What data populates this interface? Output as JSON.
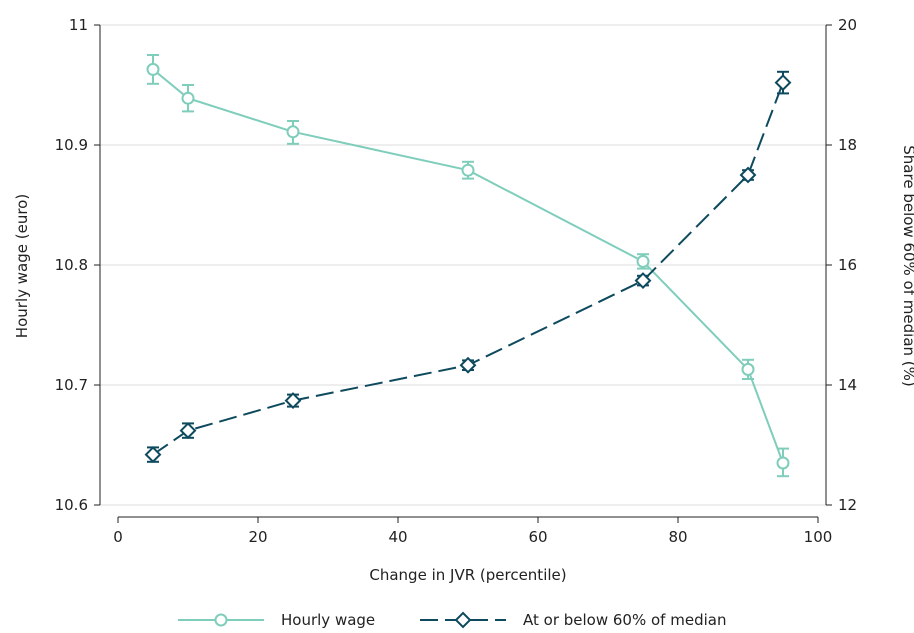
{
  "chart_data": {
    "type": "line",
    "xlabel": "Change in JVR (percentile)",
    "ylabel_left": "Hourly wage (euro)",
    "ylabel_right": "Share below 60% of median (%)",
    "xlim": [
      0,
      100
    ],
    "ylim_left": [
      10.6,
      11.0
    ],
    "ylim_right": [
      12,
      20
    ],
    "x_ticks": [
      0,
      20,
      40,
      60,
      80,
      100
    ],
    "y_left_ticks": [
      10.6,
      10.7,
      10.8,
      10.9,
      11
    ],
    "y_left_tick_labels": [
      "10.6",
      "10.7",
      "10.8",
      "10.9",
      "11"
    ],
    "y_right_ticks": [
      12,
      14,
      16,
      18,
      20
    ],
    "y_right_tick_labels": [
      "12",
      "14",
      "16",
      "18",
      "20"
    ],
    "grid": true,
    "legend_position": "bottom",
    "x": [
      5,
      10,
      25,
      50,
      75,
      90,
      95
    ],
    "series": [
      {
        "name": "Hourly wage",
        "axis": "left",
        "color": "#7fcdbb",
        "marker": "circle",
        "line_style": "solid",
        "values": [
          10.963,
          10.939,
          10.911,
          10.879,
          10.803,
          10.713,
          10.635
        ],
        "ci_low": [
          10.951,
          10.928,
          10.901,
          10.872,
          10.797,
          10.705,
          10.624
        ],
        "ci_high": [
          10.975,
          10.95,
          10.92,
          10.886,
          10.809,
          10.721,
          10.647
        ]
      },
      {
        "name": "At or below 60% of median",
        "axis": "right",
        "color": "#0e4a5e",
        "marker": "diamond",
        "line_style": "dashed",
        "values": [
          12.84,
          13.24,
          13.74,
          14.33,
          15.74,
          17.5,
          19.04
        ],
        "ci_low": [
          12.72,
          13.12,
          13.64,
          14.25,
          15.66,
          17.42,
          18.86
        ],
        "ci_high": [
          12.96,
          13.36,
          13.84,
          14.41,
          15.82,
          17.58,
          19.22
        ]
      }
    ]
  }
}
